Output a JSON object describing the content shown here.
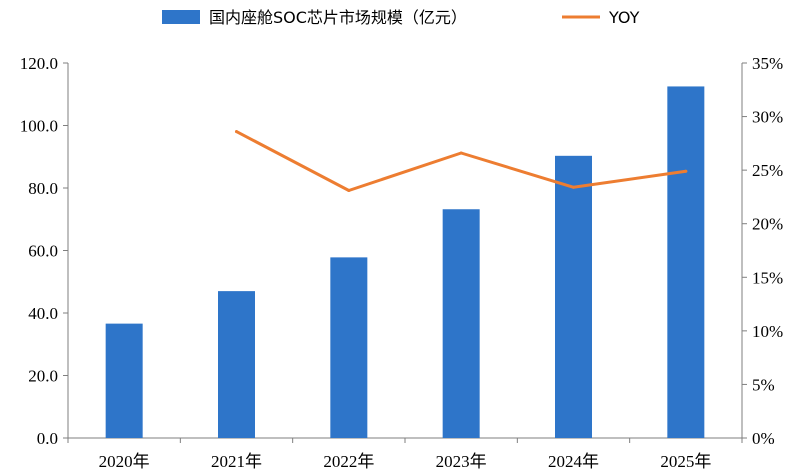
{
  "chart_data": {
    "type": "bar",
    "categories": [
      "2020年",
      "2021年",
      "2022年",
      "2023年",
      "2024年",
      "2025年"
    ],
    "series": [
      {
        "name": "国内座舱SOC芯片市场规模（亿元）",
        "type": "bar",
        "axis": "left",
        "color": "#2E75C9",
        "values": [
          36.6,
          47.0,
          57.8,
          73.2,
          90.3,
          112.5
        ]
      },
      {
        "name": "YOY",
        "type": "line",
        "axis": "right",
        "color": "#ED7D31",
        "values": [
          null,
          0.286,
          0.231,
          0.266,
          0.234,
          0.249
        ]
      }
    ],
    "y_left": {
      "ylim": [
        0,
        120
      ],
      "ticks": [
        "0.0",
        "20.0",
        "40.0",
        "60.0",
        "80.0",
        "100.0",
        "120.0"
      ]
    },
    "y_right": {
      "ylim": [
        0,
        0.35
      ],
      "ticks": [
        "0%",
        "5%",
        "10%",
        "15%",
        "20%",
        "25%",
        "30%",
        "35%"
      ]
    },
    "legend": {
      "position": "top",
      "items": [
        {
          "label": "国内座舱SOC芯片市场规模（亿元）",
          "kind": "bar",
          "color": "#2E75C9"
        },
        {
          "label": "YOY",
          "kind": "line",
          "color": "#ED7D31"
        }
      ]
    },
    "grid": false
  }
}
